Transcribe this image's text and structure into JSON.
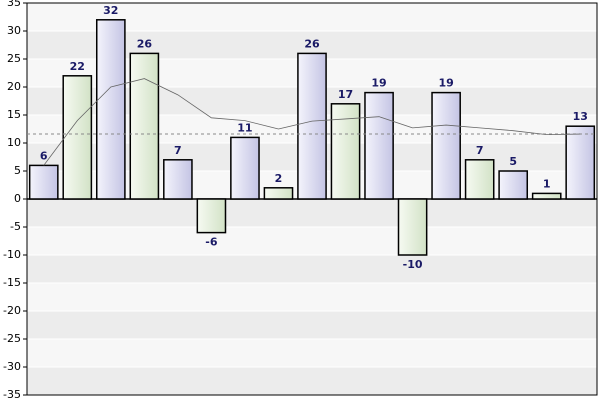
{
  "chart_data": {
    "type": "bar",
    "categories": [
      null,
      null,
      null,
      null,
      null,
      null,
      null,
      null,
      null,
      null,
      null,
      null,
      null,
      null,
      null,
      null,
      null
    ],
    "values": [
      6,
      22,
      32,
      26,
      7,
      -6,
      11,
      2,
      26,
      17,
      19,
      -10,
      19,
      7,
      5,
      1,
      13
    ],
    "colors": [
      "#d8d8f0",
      "#e4eedc"
    ],
    "line": {
      "color": "#666666",
      "values": [
        6,
        14,
        20,
        21.5,
        18.6,
        14.5,
        14,
        12.5,
        13.9,
        14.3,
        14.7,
        12.7,
        13.2,
        12.7,
        12.2,
        11.5,
        11.6
      ]
    },
    "average_line": 11.6,
    "ylim": [
      -35,
      35
    ],
    "yticks": [
      -35,
      -30,
      -25,
      -20,
      -15,
      -10,
      -5,
      0,
      5,
      10,
      15,
      20,
      25,
      30,
      35
    ],
    "grid": true
  }
}
